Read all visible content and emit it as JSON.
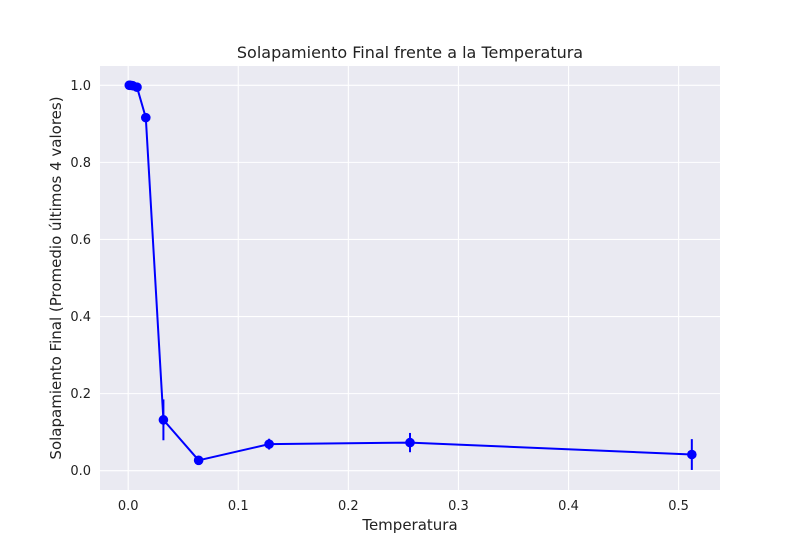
{
  "chart_data": {
    "type": "line",
    "title": "Solapamiento Final frente a la Temperatura",
    "xlabel": "Temperatura",
    "ylabel": "Solapamiento Final (Promedio últimos 4 valores)",
    "xlim": [
      -0.0256,
      0.5376
    ],
    "ylim": [
      -0.05,
      1.05
    ],
    "x_ticks": [
      0.0,
      0.1,
      0.2,
      0.3,
      0.4,
      0.5
    ],
    "x_tick_labels": [
      "0.0",
      "0.1",
      "0.2",
      "0.3",
      "0.4",
      "0.5"
    ],
    "y_ticks": [
      0.0,
      0.2,
      0.4,
      0.6,
      0.8,
      1.0
    ],
    "y_tick_labels": [
      "0.0",
      "0.2",
      "0.4",
      "0.6",
      "0.8",
      "1.0"
    ],
    "grid": true,
    "legend": "none",
    "series": [
      {
        "color": "#0000ff",
        "marker": "circle",
        "x": [
          0.001,
          0.002,
          0.004,
          0.008,
          0.016,
          0.032,
          0.064,
          0.128,
          0.256,
          0.512
        ],
        "y": [
          1.0,
          1.0,
          0.999,
          0.995,
          0.916,
          0.132,
          0.027,
          0.069,
          0.073,
          0.042
        ],
        "yerr": [
          0.0,
          0.0,
          0.001,
          0.002,
          0.004,
          0.053,
          0.002,
          0.014,
          0.025,
          0.04
        ]
      }
    ],
    "colors": {
      "plot_background": "#eaeaf2",
      "grid": "#ffffff",
      "line": "#0000ff"
    }
  }
}
